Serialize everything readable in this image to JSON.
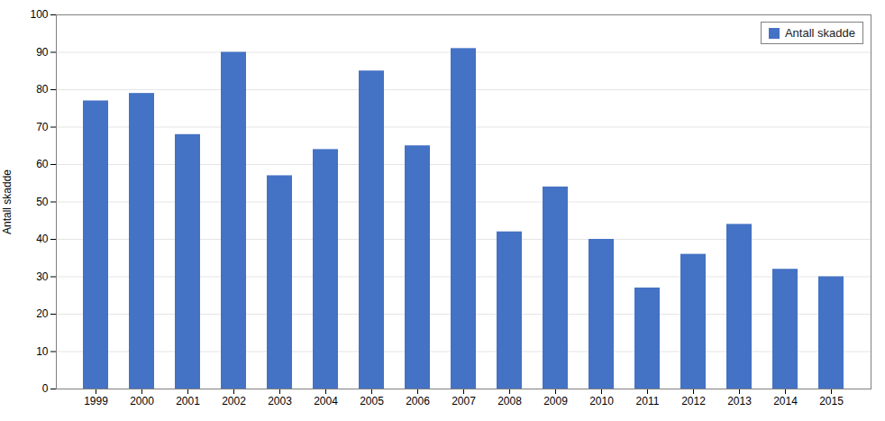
{
  "chart_data": {
    "type": "bar",
    "categories": [
      "1999",
      "2000",
      "2001",
      "2002",
      "2003",
      "2004",
      "2005",
      "2006",
      "2007",
      "2008",
      "2009",
      "2010",
      "2011",
      "2012",
      "2013",
      "2014",
      "2015"
    ],
    "series": [
      {
        "name": "Antall skadde",
        "color": "#4472C4",
        "values": [
          77,
          79,
          68,
          90,
          57,
          64,
          85,
          65,
          91,
          42,
          54,
          40,
          27,
          36,
          44,
          32,
          30
        ]
      }
    ],
    "ylabel": "Antall skadde",
    "ylim": [
      0,
      100
    ],
    "yticks": [
      0,
      10,
      20,
      30,
      40,
      50,
      60,
      70,
      80,
      90,
      100
    ],
    "grid": true,
    "legend": "upper right"
  }
}
